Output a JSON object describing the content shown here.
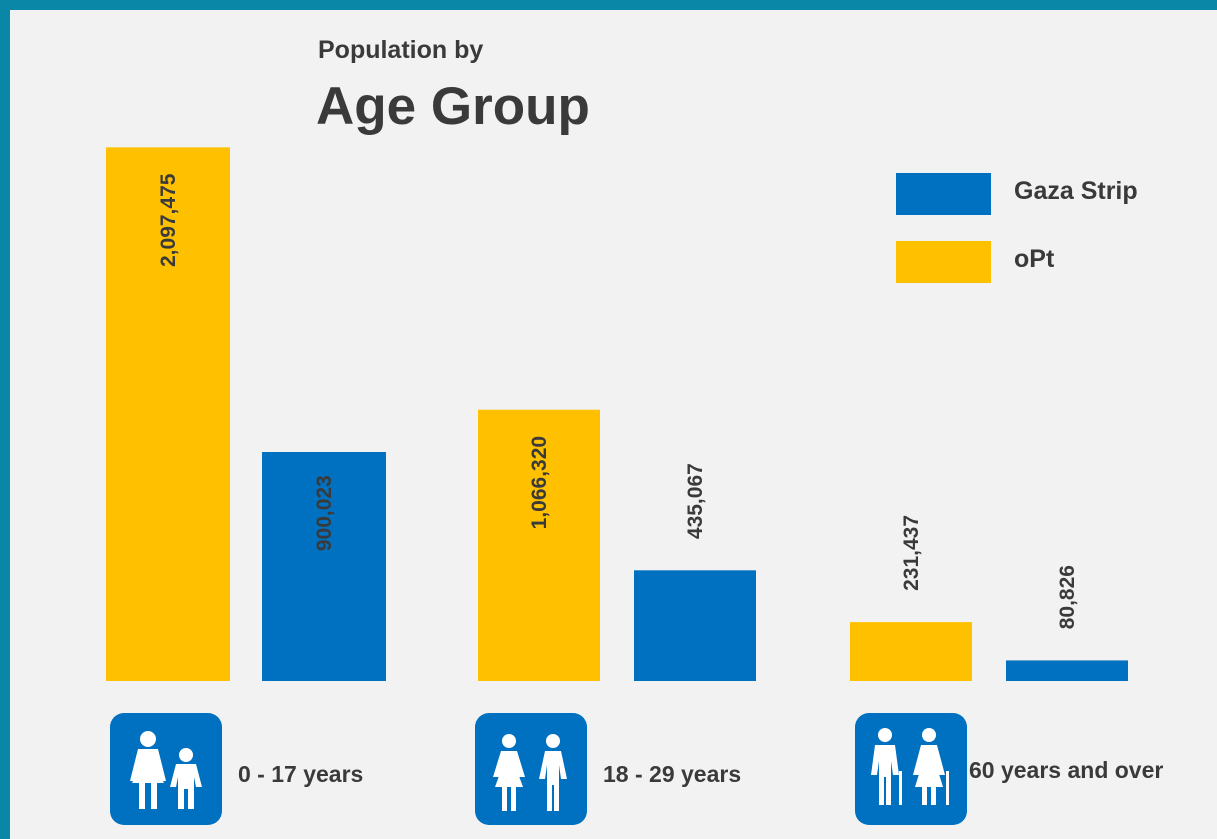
{
  "chart_data": {
    "type": "bar",
    "title": "Population by",
    "subtitle": "Age Group",
    "categories": [
      "0 - 17 years",
      "18 - 29 years",
      "60 years and over"
    ],
    "series": [
      {
        "name": "oPt",
        "color": "#ffc000",
        "values": [
          2097475,
          1066320,
          231437
        ],
        "labels": [
          "2,097,475",
          "1,066,320",
          "231,437"
        ]
      },
      {
        "name": "Gaza Strip",
        "color": "#0070c0",
        "values": [
          900023,
          435067,
          80826
        ],
        "labels": [
          "900,023",
          "435,067",
          "80,826"
        ]
      }
    ],
    "ylim": [
      0,
      2150000
    ],
    "grid": false,
    "legend_position": "top-right",
    "category_icons": [
      "adult-and-child-icon",
      "man-and-woman-icon",
      "elderly-couple-icon"
    ]
  },
  "colors": {
    "background": "#f2f2f2",
    "border": "#0a86a6",
    "text": "#3a3a3a",
    "icon_box": "#0070c0"
  }
}
